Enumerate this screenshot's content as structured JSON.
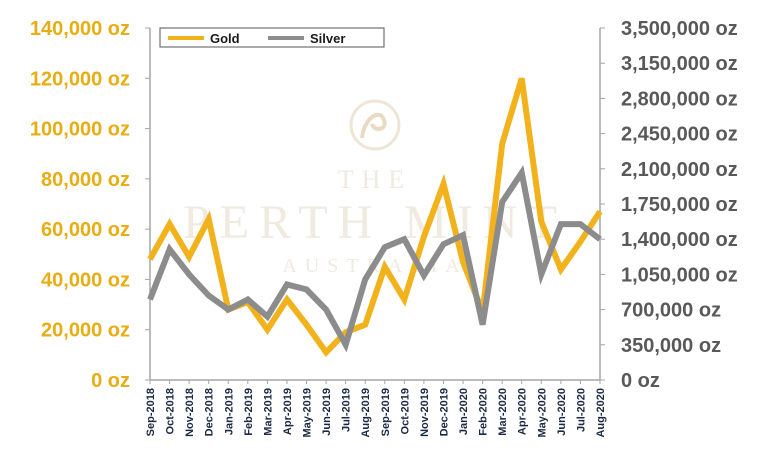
{
  "chart_data": {
    "type": "line",
    "x": [
      "Sep-2018",
      "Oct-2018",
      "Nov-2018",
      "Dec-2018",
      "Jan-2019",
      "Feb-2019",
      "Mar-2019",
      "Apr-2019",
      "May-2019",
      "Jun-2019",
      "Jul-2019",
      "Aug-2019",
      "Sep-2019",
      "Oct-2019",
      "Nov-2019",
      "Dec-2019",
      "Jan-2020",
      "Feb-2020",
      "Mar-2020",
      "Apr-2020",
      "May-2020",
      "Jun-2020",
      "Jul-2020",
      "Aug-2020"
    ],
    "series": [
      {
        "name": "Gold",
        "axis": "left",
        "color": "#f2b21c",
        "values": [
          48000,
          62000,
          49000,
          64000,
          28000,
          31000,
          20000,
          32000,
          22000,
          11000,
          19000,
          22000,
          45000,
          32000,
          57000,
          78000,
          47000,
          27000,
          94000,
          120000,
          63000,
          44000,
          55000,
          67000
        ]
      },
      {
        "name": "Silver",
        "axis": "right",
        "color": "#8c8c8c",
        "values": [
          800000,
          1300000,
          1050000,
          840000,
          700000,
          800000,
          630000,
          950000,
          900000,
          700000,
          350000,
          1000000,
          1320000,
          1400000,
          1040000,
          1350000,
          1440000,
          550000,
          1770000,
          2060000,
          1050000,
          1550000,
          1550000,
          1400000
        ]
      }
    ],
    "yleft": {
      "ticks": [
        "140,000 oz",
        "120,000 oz",
        "100,000 oz",
        "80,000 oz",
        "60,000 oz",
        "40,000 oz",
        "20,000 oz",
        "0 oz"
      ],
      "ylim": [
        0,
        140000
      ]
    },
    "yright": {
      "ticks": [
        "3,500,000 oz",
        "3,150,000 oz",
        "2,800,000 oz",
        "2,450,000 oz",
        "2,100,000 oz",
        "1,750,000 oz",
        "1,400,000 oz",
        "1,050,000 oz",
        "700,000 oz",
        "350,000 oz",
        "0 oz"
      ],
      "ylim": [
        0,
        3500000
      ]
    },
    "legend": {
      "position": "top-left",
      "entries": [
        "Gold",
        "Silver"
      ]
    },
    "grid": false
  },
  "watermark": {
    "line1": "THE",
    "line2": "PERTH MINT",
    "line3": "AUSTRALIA",
    "logo": "swan-logo-icon"
  }
}
